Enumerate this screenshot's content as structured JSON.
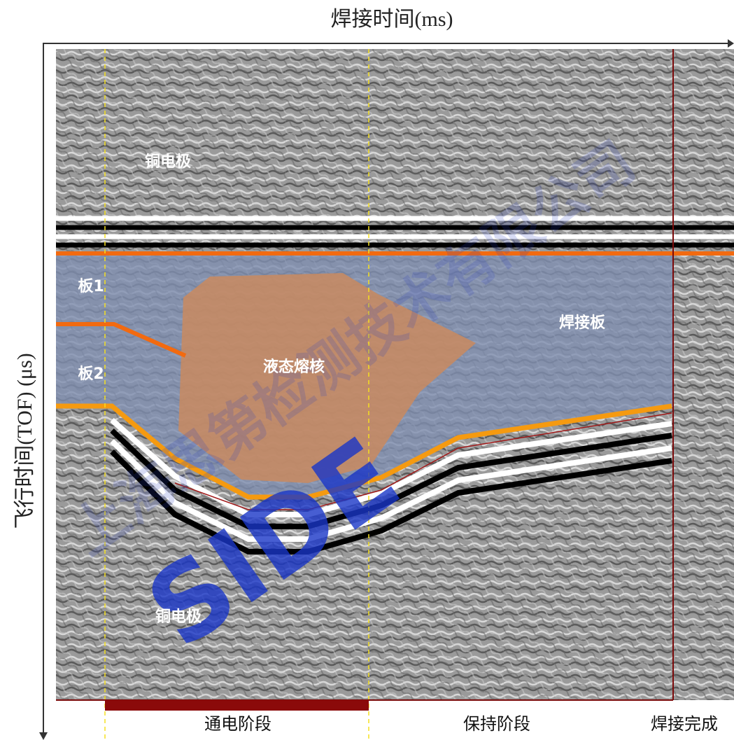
{
  "header": {
    "x_axis_label": "焊接时间(ms)",
    "y_axis_label": "飞行时间(TOF) (μs)"
  },
  "regions": {
    "top_electrode": "铜电极",
    "plate_1": "板1",
    "plate_2": "板2",
    "nugget": "液态熔核",
    "welded_plate": "焊接板",
    "bottom_electrode": "铜电极"
  },
  "phases": {
    "current": "通电阶段",
    "hold": "保持阶段",
    "complete": "焊接完成"
  },
  "watermark": {
    "company": "上海思第检测技术有限公司",
    "brand": "SIDE"
  }
}
